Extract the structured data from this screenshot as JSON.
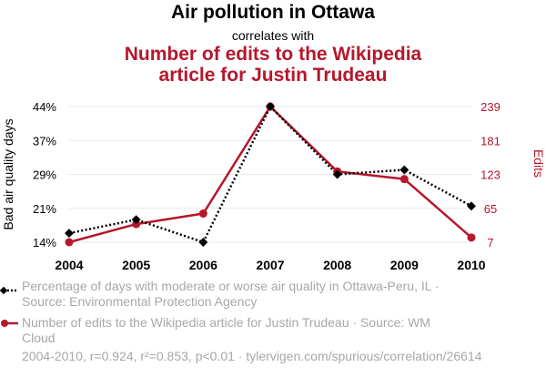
{
  "header": {
    "title": "Air pollution in Ottawa",
    "subtitle": "correlates with",
    "title2_line1": "Number of edits to the Wikipedia",
    "title2_line2": "article for Justin Trudeau"
  },
  "colors": {
    "series1": "#000000",
    "series2": "#b5172c",
    "grid": "#e8e8e8",
    "muted_text": "#a7a7a7"
  },
  "chart_data": {
    "type": "line",
    "x": [
      "2004",
      "2005",
      "2006",
      "2007",
      "2008",
      "2009",
      "2010"
    ],
    "ylabel_left": "Bad air quality days",
    "ylabel_right": "Edits",
    "y_left_ticks": [
      "44%",
      "37%",
      "29%",
      "21%",
      "14%"
    ],
    "y_right_ticks": [
      "239",
      "181",
      "123",
      "65",
      "7"
    ],
    "y_left_lim": [
      14,
      44
    ],
    "y_right_lim": [
      7,
      239
    ],
    "series": [
      {
        "name": "Percentage of days with moderate or worse air quality in Ottawa-Peru, IL",
        "axis": "left",
        "style": "dotted",
        "marker": "diamond",
        "values": [
          16,
          19,
          14,
          44,
          29,
          30,
          22
        ]
      },
      {
        "name": "Number of edits to the Wikipedia article for Justin Trudeau",
        "axis": "right",
        "style": "solid",
        "marker": "circle",
        "values": [
          7,
          38,
          56,
          239,
          128,
          115,
          15
        ]
      }
    ]
  },
  "legend": {
    "series1_line1": "Percentage of days with moderate or worse air quality in Ottawa-Peru, IL ·",
    "series1_line2": "Source: Environmental Protection Agency",
    "series2_line1": "Number of edits to the Wikipedia article for Justin Trudeau · Source: WM",
    "series2_line2": "Cloud"
  },
  "footer": "2004-2010, r=0.924, r²=0.853, p<0.01 · tylervigen.com/spurious/correlation/26614"
}
